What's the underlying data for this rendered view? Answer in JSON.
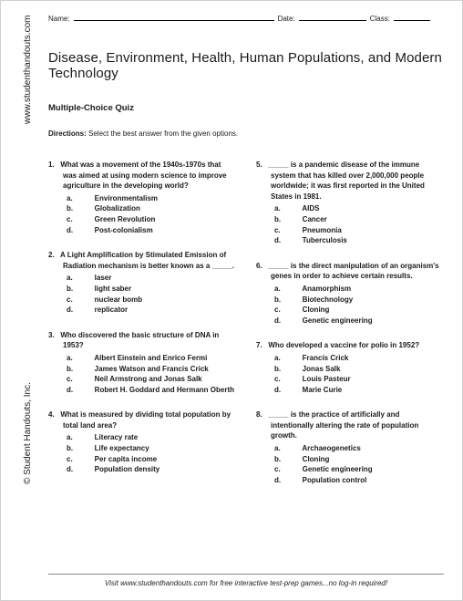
{
  "header": {
    "name_label": "Name:",
    "date_label": "Date:",
    "class_label": "Class:",
    "name_blank_width": 220,
    "date_blank_width": 74,
    "class_blank_width": 40
  },
  "title": "Disease, Environment, Health, Human Populations, and Modern Technology",
  "subtitle": "Multiple-Choice Quiz",
  "directions_label": "Directions:",
  "directions_text": " Select the best answer from the given options.",
  "sidebar": {
    "url": "www.studenthandouts.com",
    "copyright": "© Student Handouts, Inc."
  },
  "footer": "Visit www.studenthandouts.com for free interactive test-prep games...no log-in required!",
  "questions_left": [
    {
      "num": "1.",
      "stem": "What was a movement of the 1940s-1970s that was aimed at using modern science to improve agriculture in the developing world?",
      "choices": [
        "Environmentalism",
        "Globalization",
        "Green Revolution",
        "Post-colonialism"
      ]
    },
    {
      "num": "2.",
      "stem": "A Light Amplification by Stimulated Emission of Radiation mechanism is better known as a _____.",
      "choices": [
        "laser",
        "light saber",
        "nuclear bomb",
        "replicator"
      ]
    },
    {
      "num": "3.",
      "stem": "Who discovered the basic structure of DNA in 1953?",
      "choices": [
        "Albert Einstein and Enrico Fermi",
        "James Watson and Francis Crick",
        "Neil Armstrong and Jonas Salk",
        "Robert H. Goddard and Hermann Oberth"
      ]
    },
    {
      "num": "4.",
      "stem": "What is measured by dividing total population by total land area?",
      "choices": [
        "Literacy rate",
        "Life expectancy",
        "Per capita income",
        "Population density"
      ]
    }
  ],
  "questions_right": [
    {
      "num": "5.",
      "stem": "_____ is a pandemic disease of the immune system that has killed over 2,000,000 people worldwide; it was first reported in the United States in 1981.",
      "choices": [
        "AIDS",
        "Cancer",
        "Pneumonia",
        "Tuberculosis"
      ]
    },
    {
      "num": "6.",
      "stem": "_____ is the direct manipulation of an organism's genes in order to achieve certain results.",
      "choices": [
        "Anamorphism",
        "Biotechnology",
        "Cloning",
        "Genetic engineering"
      ]
    },
    {
      "num": "7.",
      "stem": "Who developed a vaccine for polio in 1952?",
      "choices": [
        "Francis Crick",
        "Jonas Salk",
        "Louis Pasteur",
        "Marie Curie"
      ]
    },
    {
      "num": "8.",
      "stem": "_____ is the practice of artificially and intentionally altering the rate of population growth.",
      "choices": [
        "Archaeogenetics",
        "Cloning",
        "Genetic engineering",
        "Population control"
      ]
    }
  ],
  "letters": [
    "a.",
    "b.",
    "c.",
    "d."
  ]
}
